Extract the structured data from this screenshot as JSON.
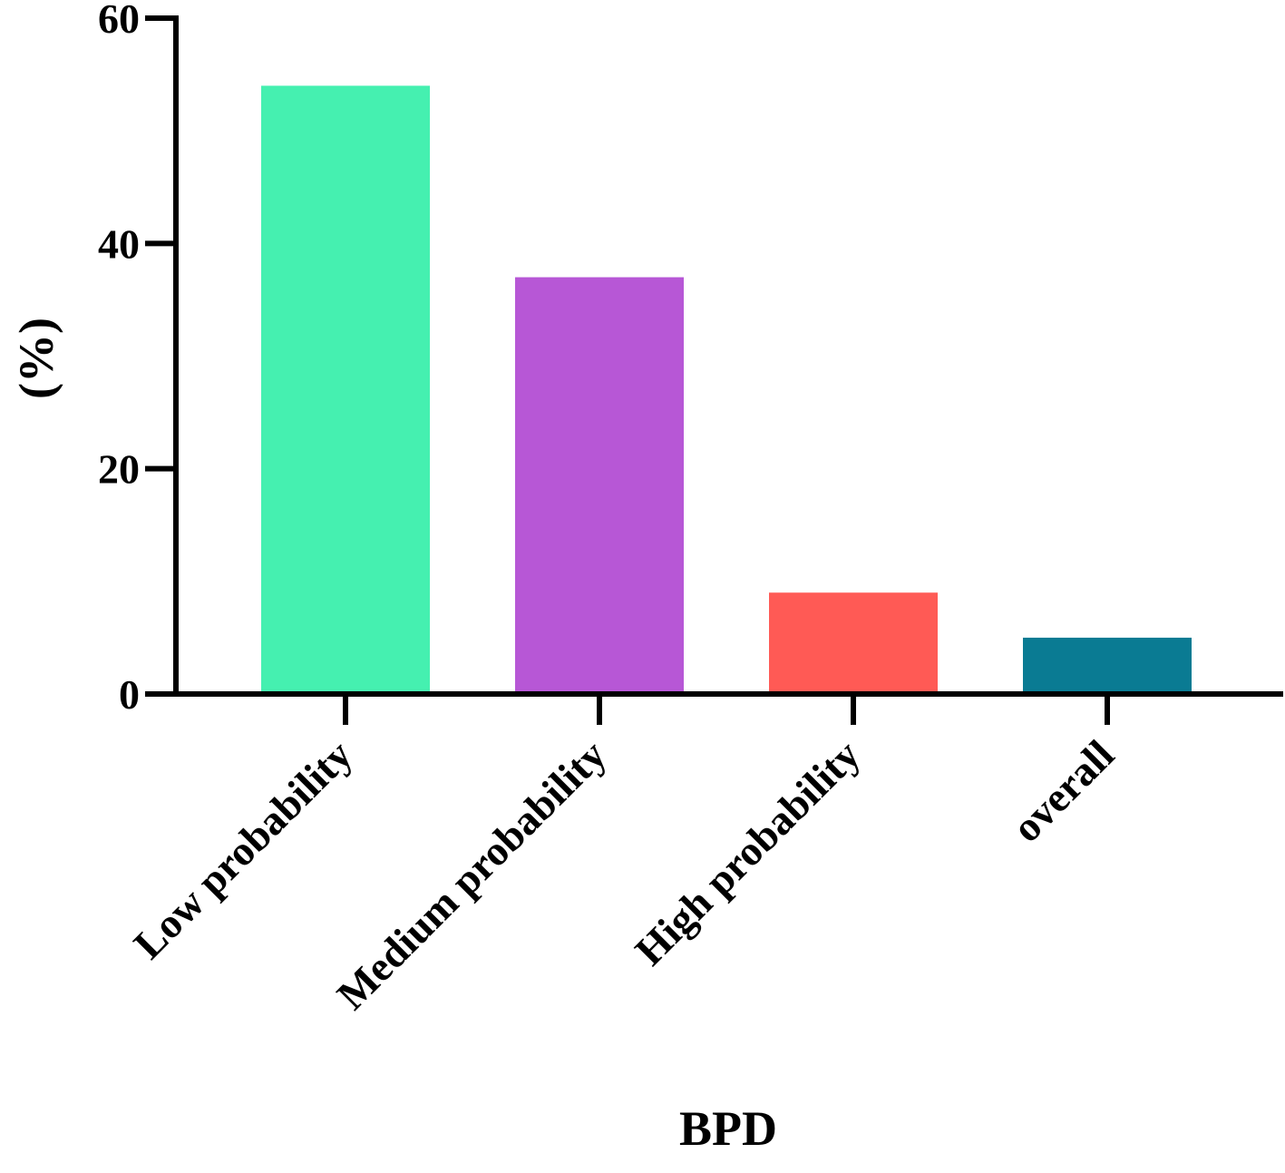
{
  "chart_data": {
    "type": "bar",
    "title": "",
    "xlabel": "BPD",
    "ylabel": "(%)",
    "ylim": [
      0,
      60
    ],
    "yticks": [
      0,
      20,
      40,
      60
    ],
    "grid": false,
    "legend": "none",
    "categories": [
      "Low probability",
      "Medium probability",
      "High probability",
      "overall"
    ],
    "values": [
      54,
      37,
      9,
      5
    ],
    "colors": [
      "#45f0b0",
      "#b757d6",
      "#ff5a55",
      "#0a7b93"
    ]
  }
}
